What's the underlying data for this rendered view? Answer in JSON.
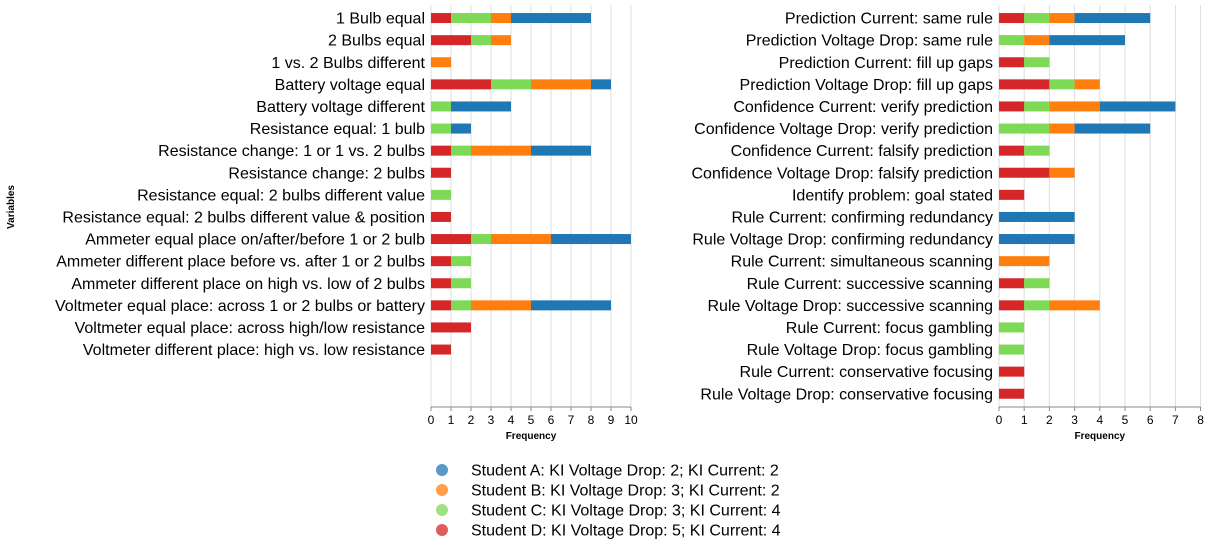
{
  "chart_data": [
    {
      "type": "bar",
      "stacked": true,
      "orientation": "horizontal",
      "xlabel": "Frequency",
      "ylabel": "Variables",
      "xlim": [
        0,
        10
      ],
      "xticks": [
        "0",
        "1",
        "2",
        "3",
        "4",
        "5",
        "6",
        "7",
        "8",
        "9",
        "10"
      ],
      "grid": true,
      "categories": [
        "1 Bulb equal",
        "2 Bulbs equal",
        "1 vs. 2 Bulbs different",
        "Battery voltage equal",
        "Battery voltage different",
        "Resistance equal: 1 bulb",
        "Resistance change: 1 or 1 vs. 2 bulbs",
        "Resistance change: 2 bulbs",
        "Resistance equal: 2 bulbs different value",
        "Resistance equal: 2 bulbs different value & position",
        "Ammeter equal place on/after/before 1 or 2 bulb",
        "Ammeter different place before vs. after 1 or 2 bulbs",
        "Ammeter different place on high vs. low of 2 bulbs",
        "Voltmeter equal place: across 1 or 2 bulbs or battery",
        "Voltmeter equal place: across high/low resistance",
        "Voltmeter different place: high vs. low resistance"
      ],
      "series": [
        {
          "name": "Student D: KI Voltage Drop: 5; KI Current: 4",
          "values": [
            1,
            2,
            0,
            3,
            0,
            0,
            1,
            1,
            0,
            1,
            2,
            1,
            1,
            1,
            2,
            1
          ]
        },
        {
          "name": "Student C: KI Voltage Drop: 3; KI Current: 4",
          "values": [
            2,
            1,
            0,
            2,
            1,
            1,
            1,
            0,
            1,
            0,
            1,
            1,
            1,
            1,
            0,
            0
          ]
        },
        {
          "name": "Student B: KI Voltage Drop: 3; KI Current: 2",
          "values": [
            1,
            1,
            1,
            3,
            0,
            0,
            3,
            0,
            0,
            0,
            3,
            0,
            0,
            3,
            0,
            0
          ]
        },
        {
          "name": "Student A: KI Voltage Drop: 2; KI Current: 2",
          "values": [
            4,
            0,
            0,
            1,
            3,
            1,
            3,
            0,
            0,
            0,
            4,
            0,
            0,
            4,
            0,
            0
          ]
        }
      ]
    },
    {
      "type": "bar",
      "stacked": true,
      "orientation": "horizontal",
      "xlabel": "Frequency",
      "ylabel": "",
      "xlim": [
        0,
        8
      ],
      "xticks": [
        "0",
        "1",
        "2",
        "3",
        "4",
        "5",
        "6",
        "7",
        "8"
      ],
      "grid": true,
      "categories": [
        "Prediction Current: same rule",
        "Prediction Voltage Drop: same rule",
        "Prediction Current: fill up gaps",
        "Prediction Voltage Drop: fill up gaps",
        "Confidence Current: verify prediction",
        "Confidence Voltage Drop: verify prediction",
        "Confidence Current: falsify prediction",
        "Confidence Voltage Drop: falsify prediction",
        "Identify problem: goal stated",
        "Rule Current: confirming redundancy",
        "Rule Voltage Drop: confirming redundancy",
        "Rule Current: simultaneous scanning",
        "Rule Current: successive scanning",
        "Rule Voltage Drop: successive scanning",
        "Rule Current: focus gambling",
        "Rule Voltage Drop: focus gambling",
        "Rule Current: conservative focusing",
        "Rule Voltage Drop: conservative focusing"
      ],
      "series": [
        {
          "name": "Student D: KI Voltage Drop: 5; KI Current: 4",
          "values": [
            1,
            0,
            1,
            2,
            1,
            0,
            1,
            2,
            1,
            0,
            0,
            0,
            1,
            1,
            0,
            0,
            1,
            1
          ]
        },
        {
          "name": "Student C: KI Voltage Drop: 3; KI Current: 4",
          "values": [
            1,
            1,
            1,
            1,
            1,
            2,
            1,
            0,
            0,
            0,
            0,
            0,
            1,
            1,
            1,
            1,
            0,
            0
          ]
        },
        {
          "name": "Student B: KI Voltage Drop: 3; KI Current: 2",
          "values": [
            1,
            1,
            0,
            1,
            2,
            1,
            0,
            1,
            0,
            0,
            0,
            2,
            0,
            2,
            0,
            0,
            0,
            0
          ]
        },
        {
          "name": "Student A: KI Voltage Drop: 2; KI Current: 2",
          "values": [
            3,
            3,
            0,
            0,
            3,
            3,
            0,
            0,
            0,
            3,
            3,
            0,
            0,
            0,
            0,
            0,
            0,
            0
          ]
        }
      ]
    }
  ],
  "legend": {
    "placement": "bottom",
    "items": [
      {
        "label": "Student A: KI Voltage Drop: 2; KI Current: 2",
        "color": "#1f77b4"
      },
      {
        "label": "Student B: KI Voltage Drop: 3; KI Current: 2",
        "color": "#ff7f0e"
      },
      {
        "label": "Student C: KI Voltage Drop: 3; KI Current: 4",
        "color": "#7ed957"
      },
      {
        "label": "Student D: KI Voltage Drop: 5; KI Current: 4",
        "color": "#d62728"
      }
    ]
  },
  "series_colors": [
    "#d62728",
    "#7ed957",
    "#ff7f0e",
    "#1f77b4"
  ]
}
